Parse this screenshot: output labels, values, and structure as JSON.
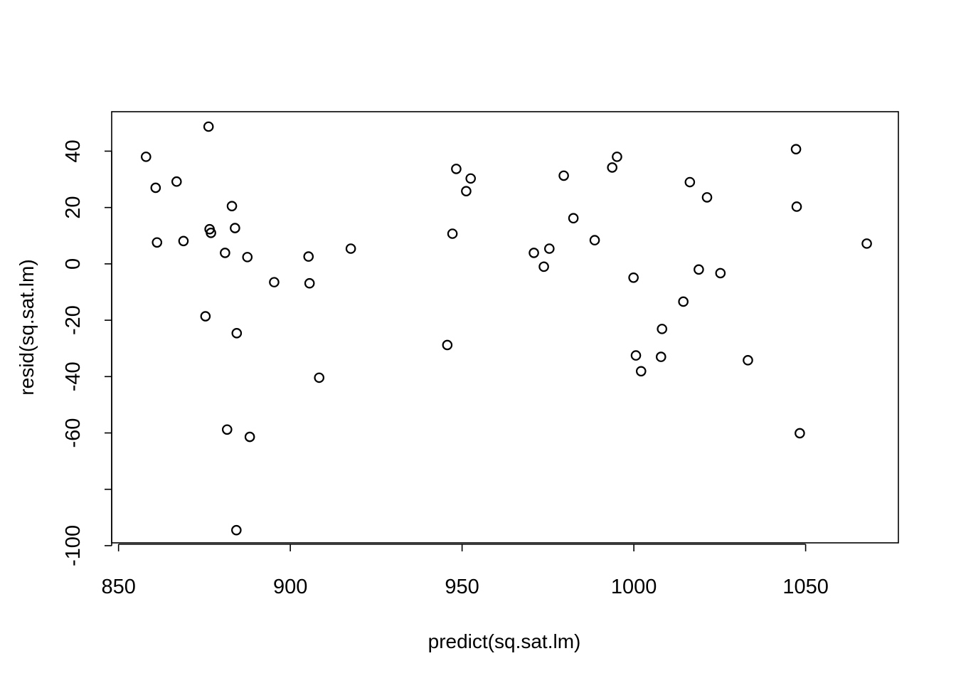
{
  "chart_data": {
    "type": "scatter",
    "xlabel": "predict(sq.sat.lm)",
    "ylabel": "resid(sq.sat.lm)",
    "xlim": [
      848,
      1077
    ],
    "ylim": [
      -99,
      54
    ],
    "x_ticks": [
      850,
      900,
      950,
      1000,
      1050
    ],
    "x_tick_labels": [
      "850",
      "900",
      "950",
      "1000",
      "1050"
    ],
    "y_ticks": [
      -100,
      -80,
      -60,
      -40,
      -20,
      0,
      20,
      40
    ],
    "y_tick_labels": [
      "-100",
      "",
      "-60",
      "-40",
      "-20",
      "0",
      "20",
      "40"
    ],
    "grid": false,
    "points": [
      {
        "x": 858.0,
        "y": 38.0
      },
      {
        "x": 860.8,
        "y": 27.0
      },
      {
        "x": 861.2,
        "y": 7.6
      },
      {
        "x": 866.9,
        "y": 29.2
      },
      {
        "x": 868.9,
        "y": 8.1
      },
      {
        "x": 875.3,
        "y": -18.6
      },
      {
        "x": 876.2,
        "y": 48.7
      },
      {
        "x": 876.5,
        "y": 12.3
      },
      {
        "x": 876.9,
        "y": 11.0
      },
      {
        "x": 881.0,
        "y": 3.9
      },
      {
        "x": 881.6,
        "y": -58.8
      },
      {
        "x": 883.0,
        "y": 20.5
      },
      {
        "x": 883.9,
        "y": 12.7
      },
      {
        "x": 884.3,
        "y": -94.5
      },
      {
        "x": 884.4,
        "y": -24.6
      },
      {
        "x": 887.5,
        "y": 2.4
      },
      {
        "x": 888.2,
        "y": -61.4
      },
      {
        "x": 895.3,
        "y": -6.5
      },
      {
        "x": 905.3,
        "y": 2.6
      },
      {
        "x": 905.6,
        "y": -6.9
      },
      {
        "x": 908.4,
        "y": -40.4
      },
      {
        "x": 917.6,
        "y": 5.4
      },
      {
        "x": 945.7,
        "y": -28.8
      },
      {
        "x": 947.2,
        "y": 10.7
      },
      {
        "x": 948.3,
        "y": 33.7
      },
      {
        "x": 951.2,
        "y": 25.8
      },
      {
        "x": 952.5,
        "y": 30.3
      },
      {
        "x": 970.9,
        "y": 3.9
      },
      {
        "x": 973.8,
        "y": -1.0
      },
      {
        "x": 975.4,
        "y": 5.4
      },
      {
        "x": 979.6,
        "y": 31.3
      },
      {
        "x": 982.4,
        "y": 16.2
      },
      {
        "x": 988.6,
        "y": 8.4
      },
      {
        "x": 993.7,
        "y": 34.2
      },
      {
        "x": 995.1,
        "y": 38.0
      },
      {
        "x": 999.9,
        "y": -4.9
      },
      {
        "x": 1000.6,
        "y": -32.5
      },
      {
        "x": 1002.1,
        "y": -38.1
      },
      {
        "x": 1007.9,
        "y": -33.0
      },
      {
        "x": 1008.2,
        "y": -23.1
      },
      {
        "x": 1014.4,
        "y": -13.4
      },
      {
        "x": 1016.3,
        "y": 29.0
      },
      {
        "x": 1018.9,
        "y": -2.0
      },
      {
        "x": 1021.3,
        "y": 23.6
      },
      {
        "x": 1025.2,
        "y": -3.3
      },
      {
        "x": 1033.2,
        "y": -34.2
      },
      {
        "x": 1047.2,
        "y": 40.7
      },
      {
        "x": 1047.4,
        "y": 20.3
      },
      {
        "x": 1048.3,
        "y": -60.1
      },
      {
        "x": 1067.8,
        "y": 7.2
      }
    ]
  }
}
